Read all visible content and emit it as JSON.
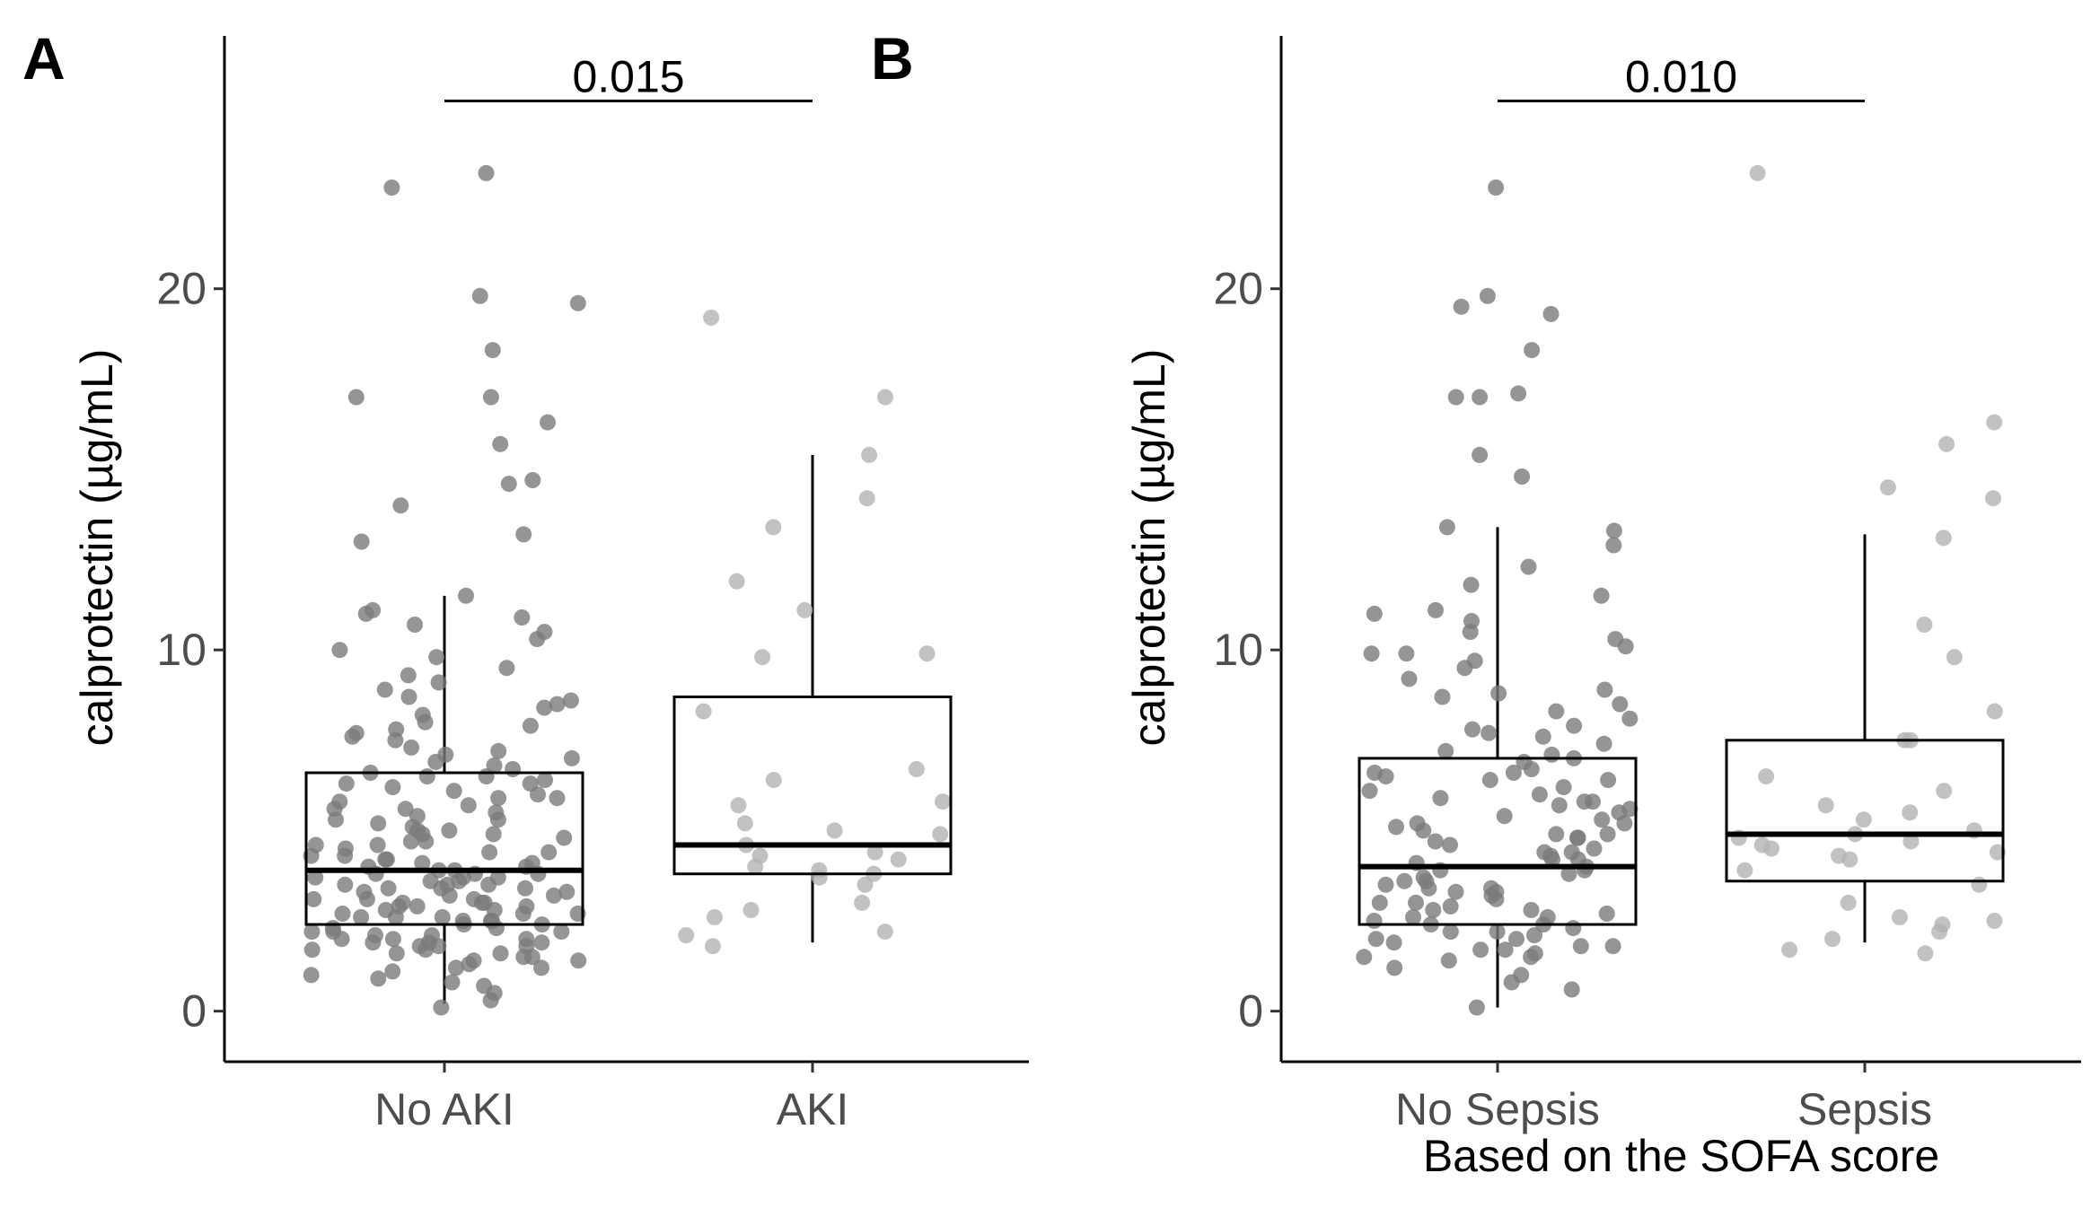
{
  "chart_data": [
    {
      "type": "box",
      "panel_label": "A",
      "title": "",
      "xlabel": "",
      "ylabel": "calprotectin (µg/mL)",
      "ylim": [
        -1.4,
        27
      ],
      "yticks": [
        0,
        10,
        20
      ],
      "categories": [
        "No AKI",
        "AKI"
      ],
      "boxes": [
        {
          "q1": 2.4,
          "median": 3.9,
          "q3": 6.6,
          "whisker_low": 0.2,
          "whisker_high": 11.5
        },
        {
          "q1": 3.8,
          "median": 4.6,
          "q3": 8.7,
          "whisker_low": 1.9,
          "whisker_high": 15.4
        }
      ],
      "significance": {
        "from": "No AKI",
        "to": "AKI",
        "y": 25.2,
        "label": "0.015"
      },
      "points": [
        [
          23.2,
          22.8,
          19.8,
          19.6,
          18.3,
          17.0,
          17.0,
          16.3,
          15.7,
          14.7,
          14.6,
          14.0,
          13.2,
          13.0,
          11.5,
          11.1,
          11.0,
          10.9,
          10.5,
          10.3,
          10.0,
          9.8,
          9.5,
          9.3,
          8.9,
          8.7,
          8.5,
          8.4,
          8.2,
          8.0,
          7.9,
          7.7,
          7.6,
          7.5,
          7.3,
          7.1,
          7.0,
          6.9,
          6.7,
          6.6,
          6.5,
          6.4,
          6.3,
          6.2,
          6.1,
          6.0,
          5.9,
          5.8,
          5.7,
          5.6,
          5.5,
          5.4,
          5.3,
          5.2,
          5.1,
          5.0,
          4.9,
          4.8,
          4.7,
          4.6,
          4.6,
          4.5,
          4.4,
          4.3,
          4.2,
          4.2,
          4.1,
          4.0,
          4.0,
          3.9,
          3.9,
          3.8,
          3.8,
          3.7,
          3.7,
          3.6,
          3.6,
          3.5,
          3.5,
          3.4,
          3.4,
          3.3,
          3.3,
          3.2,
          3.2,
          3.1,
          3.1,
          3.0,
          3.0,
          2.9,
          2.9,
          2.8,
          2.8,
          2.7,
          2.7,
          2.6,
          2.6,
          2.5,
          2.5,
          2.4,
          2.4,
          2.3,
          2.3,
          2.2,
          2.2,
          2.1,
          2.1,
          2.0,
          2.0,
          1.9,
          1.9,
          1.8,
          1.8,
          1.7,
          1.7,
          1.6,
          1.6,
          1.5,
          1.5,
          1.4,
          1.3,
          1.2,
          1.1,
          1.0,
          0.9,
          0.8,
          0.7,
          0.5,
          0.3,
          0.1,
          6.5,
          5.9,
          4.9,
          4.3,
          3.7,
          3.1,
          2.5,
          1.9,
          7.8,
          6.8,
          5.6,
          4.7,
          3.8,
          2.9,
          2.0,
          1.2,
          8.6,
          7.2,
          5.0,
          4.1,
          3.4,
          2.6,
          1.8,
          9.1,
          6.3,
          4.4,
          3.0,
          2.2,
          1.4,
          10.7,
          5.3,
          3.5,
          2.7
        ],
        [
          19.2,
          17.0,
          15.4,
          14.2,
          13.4,
          11.9,
          11.1,
          9.9,
          9.8,
          8.3,
          6.7,
          6.4,
          5.8,
          5.7,
          5.2,
          5.0,
          4.9,
          4.6,
          4.4,
          4.3,
          4.2,
          4.0,
          3.9,
          3.8,
          3.7,
          3.5,
          3.0,
          2.8,
          2.6,
          2.2,
          2.1,
          1.8
        ]
      ]
    },
    {
      "type": "box",
      "panel_label": "B",
      "title": "",
      "xlabel": "Based on the SOFA score",
      "ylabel": "calprotectin (µg/mL)",
      "ylim": [
        -1.4,
        27
      ],
      "yticks": [
        0,
        10,
        20
      ],
      "categories": [
        "No Sepsis",
        "Sepsis"
      ],
      "boxes": [
        {
          "q1": 2.4,
          "median": 4.0,
          "q3": 7.0,
          "whisker_low": 0.1,
          "whisker_high": 13.4
        },
        {
          "q1": 3.6,
          "median": 4.9,
          "q3": 7.5,
          "whisker_low": 1.9,
          "whisker_high": 13.2
        }
      ],
      "significance": {
        "from": "No Sepsis",
        "to": "Sepsis",
        "y": 25.2,
        "label": "0.010"
      },
      "points": [
        [
          22.8,
          19.8,
          19.5,
          19.3,
          18.3,
          17.1,
          17.0,
          17.0,
          15.4,
          14.8,
          13.4,
          13.3,
          12.9,
          12.3,
          11.8,
          11.5,
          11.1,
          11.0,
          10.8,
          10.5,
          10.3,
          10.1,
          9.9,
          9.7,
          9.5,
          9.2,
          8.9,
          8.7,
          8.5,
          8.3,
          8.1,
          7.9,
          7.7,
          7.6,
          7.4,
          7.2,
          7.0,
          6.9,
          6.7,
          6.6,
          6.5,
          6.4,
          6.2,
          6.1,
          6.0,
          5.9,
          5.8,
          5.7,
          5.5,
          5.4,
          5.3,
          5.2,
          5.1,
          5.0,
          4.9,
          4.8,
          4.7,
          4.6,
          4.5,
          4.4,
          4.3,
          4.2,
          4.1,
          4.0,
          3.9,
          3.8,
          3.7,
          3.6,
          3.5,
          3.4,
          3.3,
          3.2,
          3.1,
          3.0,
          2.9,
          2.8,
          2.7,
          2.6,
          2.5,
          2.4,
          2.3,
          2.2,
          2.1,
          2.0,
          1.9,
          1.8,
          1.7,
          1.6,
          1.5,
          1.4,
          1.2,
          1.0,
          0.8,
          0.6,
          0.1,
          6.6,
          5.6,
          4.8,
          4.2,
          3.6,
          3.0,
          2.4,
          1.8,
          7.8,
          6.4,
          5.2,
          4.4,
          3.4,
          2.6,
          1.7,
          8.8,
          7.1,
          4.9,
          3.9,
          2.8,
          2.0,
          9.9,
          5.8,
          3.3,
          2.2,
          1.5
        ],
        [
          23.2,
          16.3,
          15.7,
          14.5,
          14.2,
          13.1,
          10.7,
          9.8,
          8.3,
          7.5,
          7.5,
          6.5,
          6.1,
          5.7,
          5.5,
          5.3,
          5.0,
          4.9,
          4.8,
          4.7,
          4.6,
          4.5,
          4.4,
          4.3,
          4.2,
          3.9,
          3.5,
          3.0,
          2.6,
          2.5,
          2.4,
          2.2,
          2.0,
          1.7,
          1.6
        ]
      ]
    }
  ]
}
